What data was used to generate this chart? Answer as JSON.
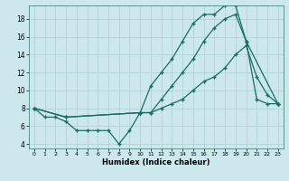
{
  "xlabel": "Humidex (Indice chaleur)",
  "bg_color": "#cce8ec",
  "line_color": "#1a6b62",
  "grid_color": "#aacdd4",
  "xlim": [
    -0.5,
    23.5
  ],
  "ylim": [
    3.5,
    19.5
  ],
  "xticks": [
    0,
    1,
    2,
    3,
    4,
    5,
    6,
    7,
    8,
    9,
    10,
    11,
    12,
    13,
    14,
    15,
    16,
    17,
    18,
    19,
    20,
    21,
    22,
    23
  ],
  "yticks": [
    4,
    6,
    8,
    10,
    12,
    14,
    16,
    18
  ],
  "line1_x": [
    0,
    1,
    2,
    3,
    4,
    5,
    6,
    7,
    8,
    9,
    10,
    11,
    12,
    13,
    14,
    15,
    16,
    17,
    18,
    19,
    20,
    21,
    22,
    23
  ],
  "line1_y": [
    8,
    7,
    7,
    6.5,
    5.5,
    5.5,
    5.5,
    5.5,
    4,
    5.5,
    7.5,
    7.5,
    8,
    8.5,
    9,
    10,
    11,
    11.5,
    12.5,
    14,
    15,
    11.5,
    9.5,
    8.5
  ],
  "line2_x": [
    0,
    3,
    10,
    11,
    12,
    13,
    14,
    15,
    16,
    17,
    18,
    19,
    20,
    23
  ],
  "line2_y": [
    8,
    7,
    7.5,
    10.5,
    12,
    13.5,
    15.5,
    17.5,
    18.5,
    18.5,
    19.5,
    19.5,
    15.5,
    8.5
  ],
  "line3_x": [
    0,
    3,
    10,
    11,
    12,
    13,
    14,
    15,
    16,
    17,
    18,
    19,
    20,
    21,
    22,
    23
  ],
  "line3_y": [
    8,
    7,
    7.5,
    7.5,
    9,
    10.5,
    12,
    13.5,
    15.5,
    17,
    18,
    18.5,
    15.5,
    9,
    8.5,
    8.5
  ]
}
